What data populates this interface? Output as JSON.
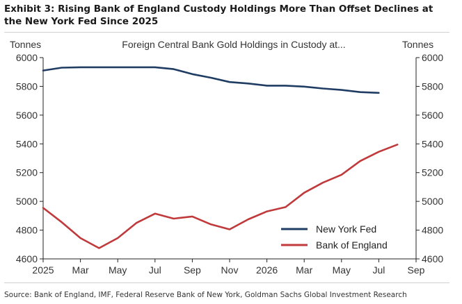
{
  "exhibit_title": "Exhibit 3: Rising Bank of England Custody Holdings More Than Offset Declines at the New York Fed Since 2025",
  "source": "Source: Bank of England, IMF, Federal Reserve Bank of New York, Goldman Sachs Global Investment Research",
  "chart_data": {
    "type": "line",
    "title": "Foreign Central Bank Gold Holdings in Custody at...",
    "ylabel_left": "Tonnes",
    "ylabel_right": "Tonnes",
    "ylim": [
      4600,
      6000
    ],
    "yticks": [
      4600,
      4800,
      5000,
      5200,
      5400,
      5600,
      5800,
      6000
    ],
    "xlim": [
      0,
      20
    ],
    "xticks": [
      {
        "x": 0,
        "label": "2025"
      },
      {
        "x": 2,
        "label": "Mar"
      },
      {
        "x": 4,
        "label": "May"
      },
      {
        "x": 6,
        "label": "Jul"
      },
      {
        "x": 8,
        "label": "Sep"
      },
      {
        "x": 10,
        "label": "Nov"
      },
      {
        "x": 12,
        "label": "2026"
      },
      {
        "x": 14,
        "label": "Mar"
      },
      {
        "x": 16,
        "label": "May"
      },
      {
        "x": 18,
        "label": "Jul"
      },
      {
        "x": 20,
        "label": "Sep"
      }
    ],
    "grid": false,
    "legend_position": "bottom-right",
    "series": [
      {
        "name": "New York Fed",
        "color": "#1f3c63",
        "x": [
          0,
          1,
          2,
          3,
          4,
          5,
          6,
          7,
          8,
          9,
          10,
          11,
          12,
          13,
          14,
          15,
          16,
          17,
          18
        ],
        "values": [
          5910,
          5930,
          5933,
          5933,
          5933,
          5933,
          5933,
          5920,
          5885,
          5860,
          5830,
          5820,
          5805,
          5805,
          5798,
          5785,
          5775,
          5760,
          5755
        ]
      },
      {
        "name": "Bank of England",
        "color": "#c0393b",
        "x": [
          0,
          1,
          2,
          3,
          4,
          5,
          6,
          7,
          8,
          9,
          10,
          11,
          12,
          13,
          14,
          15,
          16,
          17,
          18,
          19
        ],
        "values": [
          4955,
          4855,
          4745,
          4675,
          4745,
          4850,
          4915,
          4880,
          4895,
          4840,
          4805,
          4875,
          4930,
          4960,
          5060,
          5130,
          5185,
          5280,
          5345,
          5395
        ]
      }
    ]
  }
}
